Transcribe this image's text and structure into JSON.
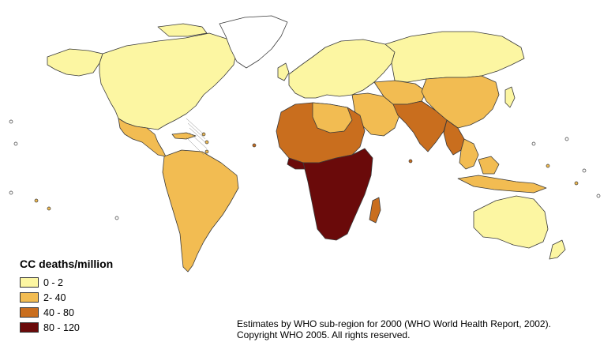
{
  "map": {
    "legend": {
      "title": "CC deaths/million",
      "items": [
        {
          "label": "0 - 2",
          "color": "#fcf6a2"
        },
        {
          "label": "2- 40",
          "color": "#f2bc52"
        },
        {
          "label": "40 - 80",
          "color": "#c96e1e"
        },
        {
          "label": "80 - 120",
          "color": "#6a0a0a"
        }
      ]
    },
    "source_line1": "Estimates by WHO sub-region for 2000 (WHO World Health Report, 2002).",
    "source_line2": "Copyright WHO 2005.  All rights reserved.",
    "colors": {
      "border": "#3a3a3a",
      "ocean": "#ffffff",
      "greenland": "#ffffff"
    }
  }
}
